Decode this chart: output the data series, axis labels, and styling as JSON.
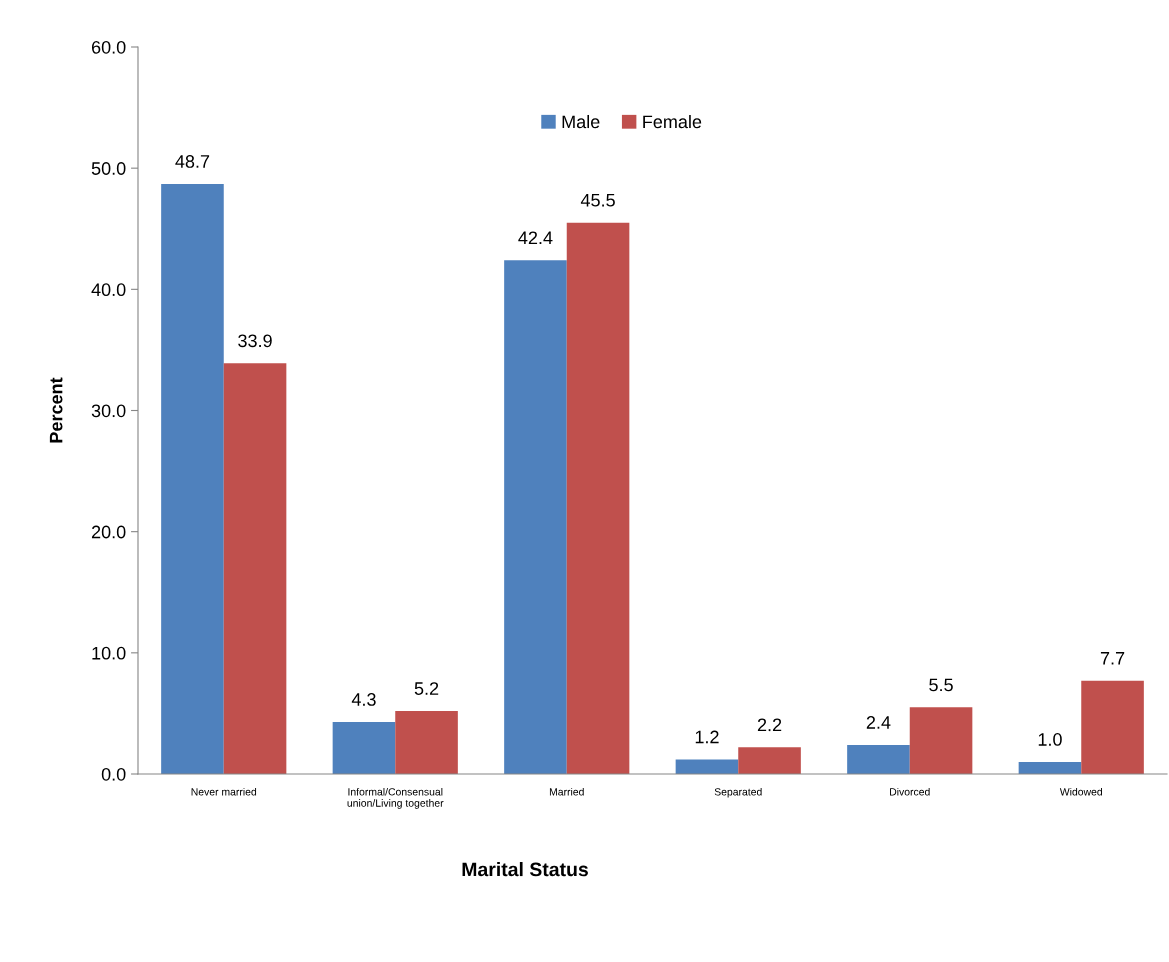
{
  "chart_data": {
    "type": "bar",
    "xlabel": "Marital Status",
    "ylabel": "Percent",
    "categories": [
      "Never married",
      "Informal/Consensual\nunion/Living together",
      "Married",
      "Separated",
      "Divorced",
      "Widowed"
    ],
    "series": [
      {
        "name": "Male",
        "color": "#4f81bd",
        "values": [
          48.7,
          4.3,
          42.4,
          1.2,
          2.4,
          1.0
        ],
        "value_labels": [
          "48.7",
          "4.3",
          "42.4",
          "1.2",
          "2.4",
          "1.0"
        ]
      },
      {
        "name": "Female",
        "color": "#c0504d",
        "values": [
          33.9,
          5.2,
          45.5,
          2.2,
          5.5,
          7.7
        ],
        "value_labels": [
          "33.9",
          "5.2",
          "45.5",
          "2.2",
          "5.5",
          "7.7"
        ]
      }
    ],
    "ylim": [
      0,
      60
    ],
    "yticks": [
      {
        "value": 0,
        "label": "0.0"
      },
      {
        "value": 10,
        "label": "10.0"
      },
      {
        "value": 20,
        "label": "20.0"
      },
      {
        "value": 30,
        "label": "30.0"
      },
      {
        "value": 40,
        "label": "40.0"
      },
      {
        "value": 50,
        "label": "50.0"
      },
      {
        "value": 60,
        "label": "60.0"
      }
    ],
    "legend": "top",
    "grid": false
  }
}
